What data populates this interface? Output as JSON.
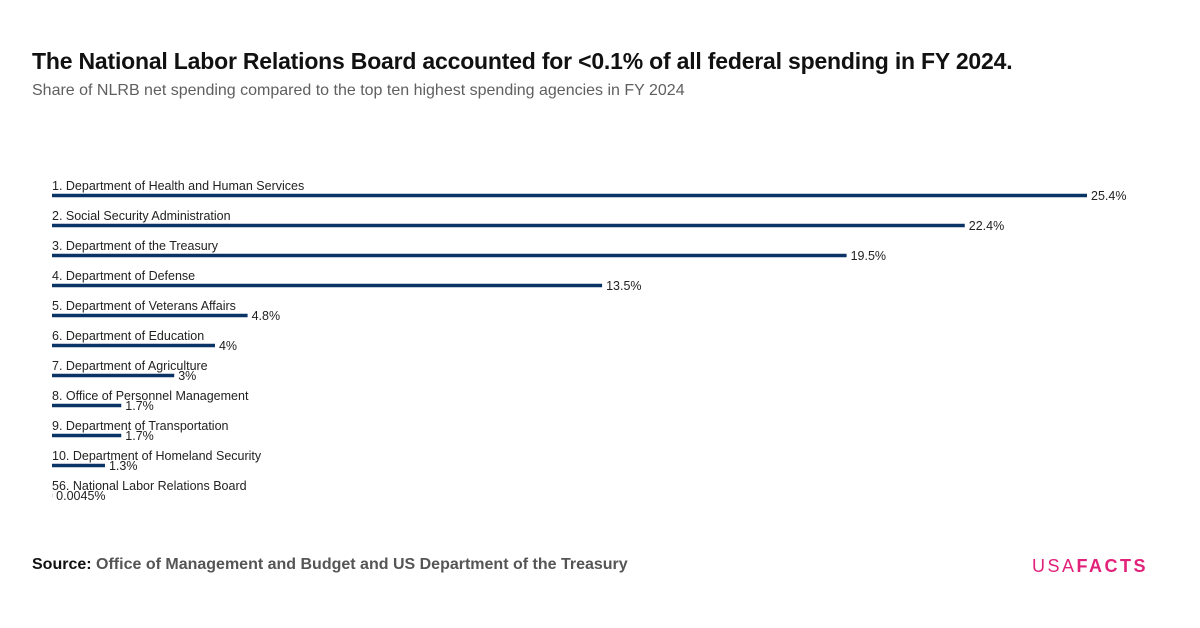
{
  "header": {
    "title": "The National Labor Relations Board accounted for <0.1% of all federal spending in FY 2024.",
    "subtitle": "Share of NLRB net spending compared to the top ten highest spending agencies in FY 2024"
  },
  "chart_data": {
    "type": "bar",
    "orientation": "horizontal",
    "categories": [
      "1. Department of Health and Human Services",
      "2. Social Security Administration",
      "3. Department of the Treasury",
      "4. Department of Defense",
      "5. Department of Veterans Affairs",
      "6. Department of Education",
      "7. Department of Agriculture",
      "8. Office of Personnel Management",
      "9. Department of Transportation",
      "10. Department of Homeland Security",
      "56. National Labor Relations Board"
    ],
    "values": [
      25.4,
      22.4,
      19.5,
      13.5,
      4.8,
      4.0,
      3.0,
      1.7,
      1.7,
      1.3,
      0.0045
    ],
    "value_labels": [
      "25.4%",
      "22.4%",
      "19.5%",
      "13.5%",
      "4.8%",
      "4%",
      "3%",
      "1.7%",
      "1.7%",
      "1.3%",
      "0.0045%"
    ],
    "title": "The National Labor Relations Board accounted for <0.1% of all federal spending in FY 2024.",
    "subtitle": "Share of NLRB net spending compared to the top ten highest spending agencies in FY 2024",
    "xlabel": "",
    "ylabel": "",
    "xlim": [
      0,
      25.4
    ],
    "grid": false,
    "legend": "none",
    "bar_color": "#0b3466"
  },
  "footer": {
    "source_label": "Source:",
    "source_text": "Office of Management and Budget and US Department of the Treasury",
    "brand_usa": "USA",
    "brand_facts": "FACTS",
    "brand_color": "#e2217a"
  }
}
